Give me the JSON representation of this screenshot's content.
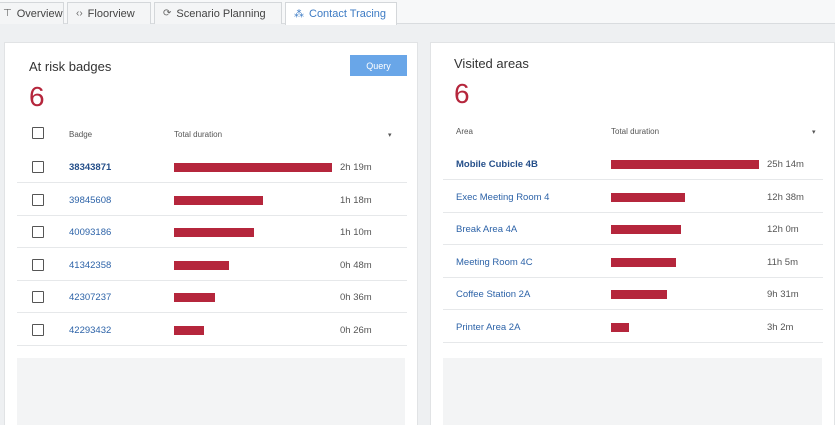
{
  "tabs": [
    {
      "icon": "filter-icon",
      "glyph": "⊤",
      "label": "Overview",
      "active": false
    },
    {
      "icon": "floorview-icon",
      "glyph": "‹›",
      "label": "Floorview",
      "active": false
    },
    {
      "icon": "refresh-icon",
      "glyph": "⟳",
      "label": "Scenario Planning",
      "active": false
    },
    {
      "icon": "network-icon",
      "glyph": "⁂",
      "label": "Contact Tracing",
      "active": true
    }
  ],
  "left": {
    "title": "At risk badges",
    "count": "6",
    "query_label": "Query",
    "col_badge": "Badge",
    "col_duration": "Total duration",
    "sort_glyph": "▾",
    "rows": [
      {
        "badge": "38343871",
        "duration": "2h 19m",
        "fraction": 1.0,
        "bold": true
      },
      {
        "badge": "39845608",
        "duration": "1h 18m",
        "fraction": 0.561,
        "bold": false
      },
      {
        "badge": "40093186",
        "duration": "1h 10m",
        "fraction": 0.504,
        "bold": false
      },
      {
        "badge": "41342358",
        "duration": "0h 48m",
        "fraction": 0.345,
        "bold": false
      },
      {
        "badge": "42307237",
        "duration": "0h 36m",
        "fraction": 0.259,
        "bold": false
      },
      {
        "badge": "42293432",
        "duration": "0h 26m",
        "fraction": 0.187,
        "bold": false
      }
    ]
  },
  "right": {
    "title": "Visited areas",
    "count": "6",
    "col_area": "Area",
    "col_duration": "Total duration",
    "sort_glyph": "▾",
    "rows": [
      {
        "area": "Mobile Cubicle 4B",
        "duration": "25h 14m",
        "fraction": 1.0,
        "bold": true
      },
      {
        "area": "Exec Meeting Room 4",
        "duration": "12h 38m",
        "fraction": 0.501,
        "bold": false
      },
      {
        "area": "Break Area 4A",
        "duration": "12h 0m",
        "fraction": 0.476,
        "bold": false
      },
      {
        "area": "Meeting Room 4C",
        "duration": "11h 5m",
        "fraction": 0.439,
        "bold": false
      },
      {
        "area": "Coffee Station 2A",
        "duration": "9h 31m",
        "fraction": 0.377,
        "bold": false
      },
      {
        "area": "Printer Area 2A",
        "duration": "3h 2m",
        "fraction": 0.12,
        "bold": false
      }
    ]
  },
  "colors": {
    "bar": "#b5263c",
    "link": "#2d63a8",
    "accent": "#3d7bc4",
    "query": "#69a6e8"
  }
}
